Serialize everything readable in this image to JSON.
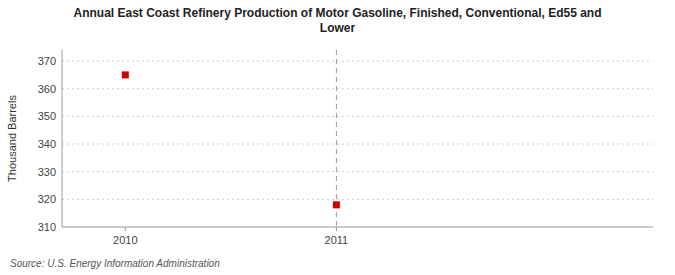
{
  "chart_data": {
    "type": "scatter",
    "title": "Annual East Coast Refinery Production of Motor Gasoline, Finished, Conventional, Ed55 and\nLower",
    "y_label": "Thousand Barrels",
    "source": "Source: U.S. Energy Information Administration",
    "x": [
      2010,
      2011
    ],
    "values": [
      365,
      318
    ],
    "color": "#cc0000",
    "marker": "square",
    "xlim": [
      2009.7,
      2012.5
    ],
    "ylim": [
      310,
      374
    ],
    "xticks": [
      2010,
      2011
    ],
    "yticks": [
      310,
      320,
      330,
      340,
      350,
      360,
      370
    ],
    "vline_x": 2011,
    "grid": true
  }
}
